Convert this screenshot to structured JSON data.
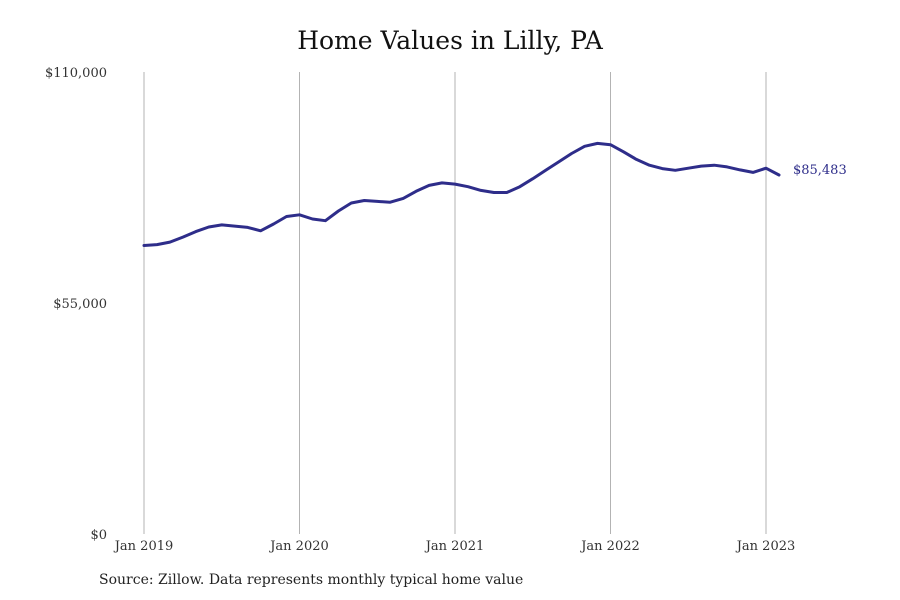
{
  "chart_data": {
    "type": "line",
    "title": "Home Values in Lilly, PA",
    "xlabel": "",
    "ylabel": "",
    "ylim": [
      0,
      110000
    ],
    "y_ticks": [
      {
        "value": 0,
        "label": "$0"
      },
      {
        "value": 55000,
        "label": "$55,000"
      },
      {
        "value": 110000,
        "label": "$110,000"
      }
    ],
    "x_ticks": [
      {
        "value": "2019-01",
        "label": "Jan 2019"
      },
      {
        "value": "2020-01",
        "label": "Jan 2020"
      },
      {
        "value": "2021-01",
        "label": "Jan 2021"
      },
      {
        "value": "2022-01",
        "label": "Jan 2022"
      },
      {
        "value": "2023-01",
        "label": "Jan 2023"
      }
    ],
    "grid": "vertical lines at each January",
    "line_color": "#2e2d8a",
    "series": [
      {
        "x": [
          "2019-01",
          "2019-02",
          "2019-03",
          "2019-04",
          "2019-05",
          "2019-06",
          "2019-07",
          "2019-08",
          "2019-09",
          "2019-10",
          "2019-11",
          "2019-12",
          "2020-01",
          "2020-02",
          "2020-03",
          "2020-04",
          "2020-05",
          "2020-06",
          "2020-07",
          "2020-08",
          "2020-09",
          "2020-10",
          "2020-11",
          "2020-12",
          "2021-01",
          "2021-02",
          "2021-03",
          "2021-04",
          "2021-05",
          "2021-06",
          "2021-07",
          "2021-08",
          "2021-09",
          "2021-10",
          "2021-11",
          "2021-12",
          "2022-01",
          "2022-02",
          "2022-03",
          "2022-04",
          "2022-05",
          "2022-06",
          "2022-07",
          "2022-08",
          "2022-09",
          "2022-10",
          "2022-11",
          "2022-12",
          "2023-01",
          "2023-02"
        ],
        "values": [
          68700,
          68900,
          69500,
          70700,
          72000,
          73100,
          73600,
          73300,
          73000,
          72200,
          73800,
          75600,
          76000,
          75000,
          74600,
          76900,
          78800,
          79400,
          79200,
          79000,
          79900,
          81600,
          83000,
          83600,
          83300,
          82700,
          81800,
          81300,
          81300,
          82700,
          84600,
          86600,
          88600,
          90600,
          92300,
          93000,
          92700,
          91000,
          89200,
          87800,
          87000,
          86600,
          87100,
          87600,
          87800,
          87400,
          86700,
          86100,
          87100,
          85483
        ]
      }
    ],
    "end_label": "$85,483"
  },
  "source": "Source: Zillow. Data represents monthly typical home value"
}
